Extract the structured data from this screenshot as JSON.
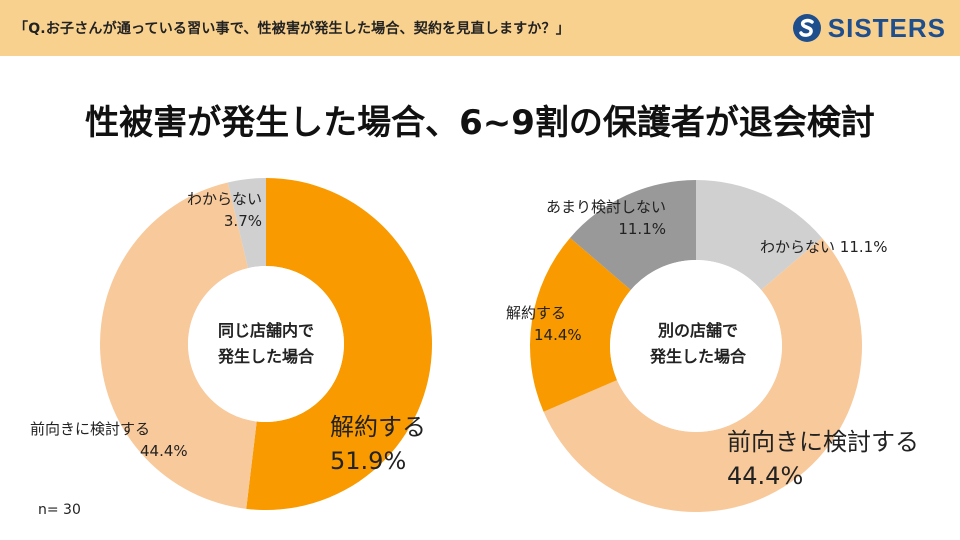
{
  "header": {
    "question": "「Q.お子さんが通っている習い事で、性被害が発生した場合、契約を見直しますか？」",
    "logo_text": "SISTERS",
    "logo_icon": "s-mark-icon",
    "background_color": "#f9d18f",
    "logo_color": "#1f4e8c"
  },
  "title": "性被害が発生した場合、6~9割の保護者が退会検討",
  "sample_size": "n= 30",
  "chart_data": [
    {
      "type": "pie",
      "title": "同じ店舗内で発生した場合",
      "center_lines": [
        "同じ店舗内で",
        "発生した場合"
      ],
      "slices": [
        {
          "label": "解約する",
          "value": 51.9,
          "value_label": "51.9%",
          "color": "#f99a00"
        },
        {
          "label": "前向きに検討する",
          "value": 44.4,
          "value_label": "44.4%",
          "color": "#f8c99b"
        },
        {
          "label": "わからない",
          "value": 3.7,
          "value_label": "3.7%",
          "color": "#d0d0d0"
        }
      ]
    },
    {
      "type": "pie",
      "title": "別の店舗で発生した場合",
      "center_lines": [
        "別の店舗で",
        "発生した場合"
      ],
      "slices": [
        {
          "label": "わからない",
          "value": 11.1,
          "value_label": "11.1%",
          "color": "#d0d0d0"
        },
        {
          "label": "前向きに検討する",
          "value": 44.4,
          "value_label": "44.4%",
          "color": "#f8c99b"
        },
        {
          "label": "解約する",
          "value": 14.4,
          "value_label": "14.4%",
          "color": "#f99a00"
        },
        {
          "label": "あまり検討しない",
          "value": 11.1,
          "value_label": "11.1%",
          "color": "#999999"
        }
      ]
    }
  ]
}
